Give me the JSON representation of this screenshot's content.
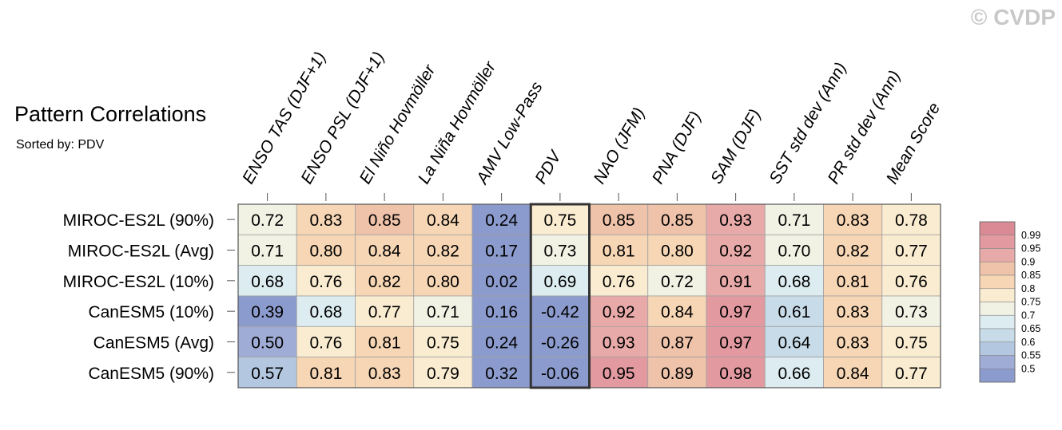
{
  "title": "Pattern Correlations",
  "subtitle": "Sorted by: PDV",
  "watermark": "© CVDP",
  "chart_data": {
    "type": "heatmap",
    "columns": [
      "ENSO TAS (DJF+1)",
      "ENSO PSL (DJF+1)",
      "El Niño Hovmöller",
      "La Niña Hovmöller",
      "AMV Low-Pass",
      "PDV",
      "NAO (JFM)",
      "PNA (DJF)",
      "SAM (DJF)",
      "SST std dev (Ann)",
      "PR std dev (Ann)",
      "Mean Score"
    ],
    "rows": [
      "MIROC-ES2L (90%)",
      "MIROC-ES2L (Avg)",
      "MIROC-ES2L (10%)",
      "CanESM5 (10%)",
      "CanESM5 (Avg)",
      "CanESM5 (90%)"
    ],
    "values": [
      [
        0.72,
        0.83,
        0.85,
        0.84,
        0.24,
        0.75,
        0.85,
        0.85,
        0.93,
        0.71,
        0.83,
        0.78
      ],
      [
        0.71,
        0.8,
        0.84,
        0.82,
        0.17,
        0.73,
        0.81,
        0.8,
        0.92,
        0.7,
        0.82,
        0.77
      ],
      [
        0.68,
        0.76,
        0.82,
        0.8,
        0.02,
        0.69,
        0.76,
        0.72,
        0.91,
        0.68,
        0.81,
        0.76
      ],
      [
        0.39,
        0.68,
        0.77,
        0.71,
        0.16,
        -0.42,
        0.92,
        0.84,
        0.97,
        0.61,
        0.83,
        0.73
      ],
      [
        0.5,
        0.76,
        0.81,
        0.75,
        0.24,
        -0.26,
        0.93,
        0.87,
        0.97,
        0.64,
        0.83,
        0.75
      ],
      [
        0.57,
        0.81,
        0.83,
        0.79,
        0.32,
        -0.06,
        0.95,
        0.89,
        0.98,
        0.66,
        0.84,
        0.77
      ]
    ],
    "value_labels": [
      [
        "0.72",
        "0.83",
        "0.85",
        "0.84",
        "0.24",
        "0.75",
        "0.85",
        "0.85",
        "0.93",
        "0.71",
        "0.83",
        "0.78"
      ],
      [
        "0.71",
        "0.80",
        "0.84",
        "0.82",
        "0.17",
        "0.73",
        "0.81",
        "0.80",
        "0.92",
        "0.70",
        "0.82",
        "0.77"
      ],
      [
        "0.68",
        "0.76",
        "0.82",
        "0.80",
        "0.02",
        "0.69",
        "0.76",
        "0.72",
        "0.91",
        "0.68",
        "0.81",
        "0.76"
      ],
      [
        "0.39",
        "0.68",
        "0.77",
        "0.71",
        "0.16",
        "-0.42",
        "0.92",
        "0.84",
        "0.97",
        "0.61",
        "0.83",
        "0.73"
      ],
      [
        "0.50",
        "0.76",
        "0.81",
        "0.75",
        "0.24",
        "-0.26",
        "0.93",
        "0.87",
        "0.97",
        "0.64",
        "0.83",
        "0.75"
      ],
      [
        "0.57",
        "0.81",
        "0.83",
        "0.79",
        "0.32",
        "-0.06",
        "0.95",
        "0.89",
        "0.98",
        "0.66",
        "0.84",
        "0.77"
      ]
    ],
    "highlighted_column": "PDV",
    "colorbar": {
      "labels": [
        "0.99",
        "0.95",
        "0.9",
        "0.85",
        "0.8",
        "0.75",
        "0.7",
        "0.65",
        "0.6",
        "0.55",
        "0.5"
      ],
      "colors": [
        "#d98a94",
        "#e29aa0",
        "#e8aaa8",
        "#efc2aa",
        "#f6d6b4",
        "#faecd1",
        "#f1f1e4",
        "#dcecf0",
        "#c8dbe8",
        "#b3c8e0",
        "#9facd5",
        "#8c9bcd"
      ]
    }
  }
}
